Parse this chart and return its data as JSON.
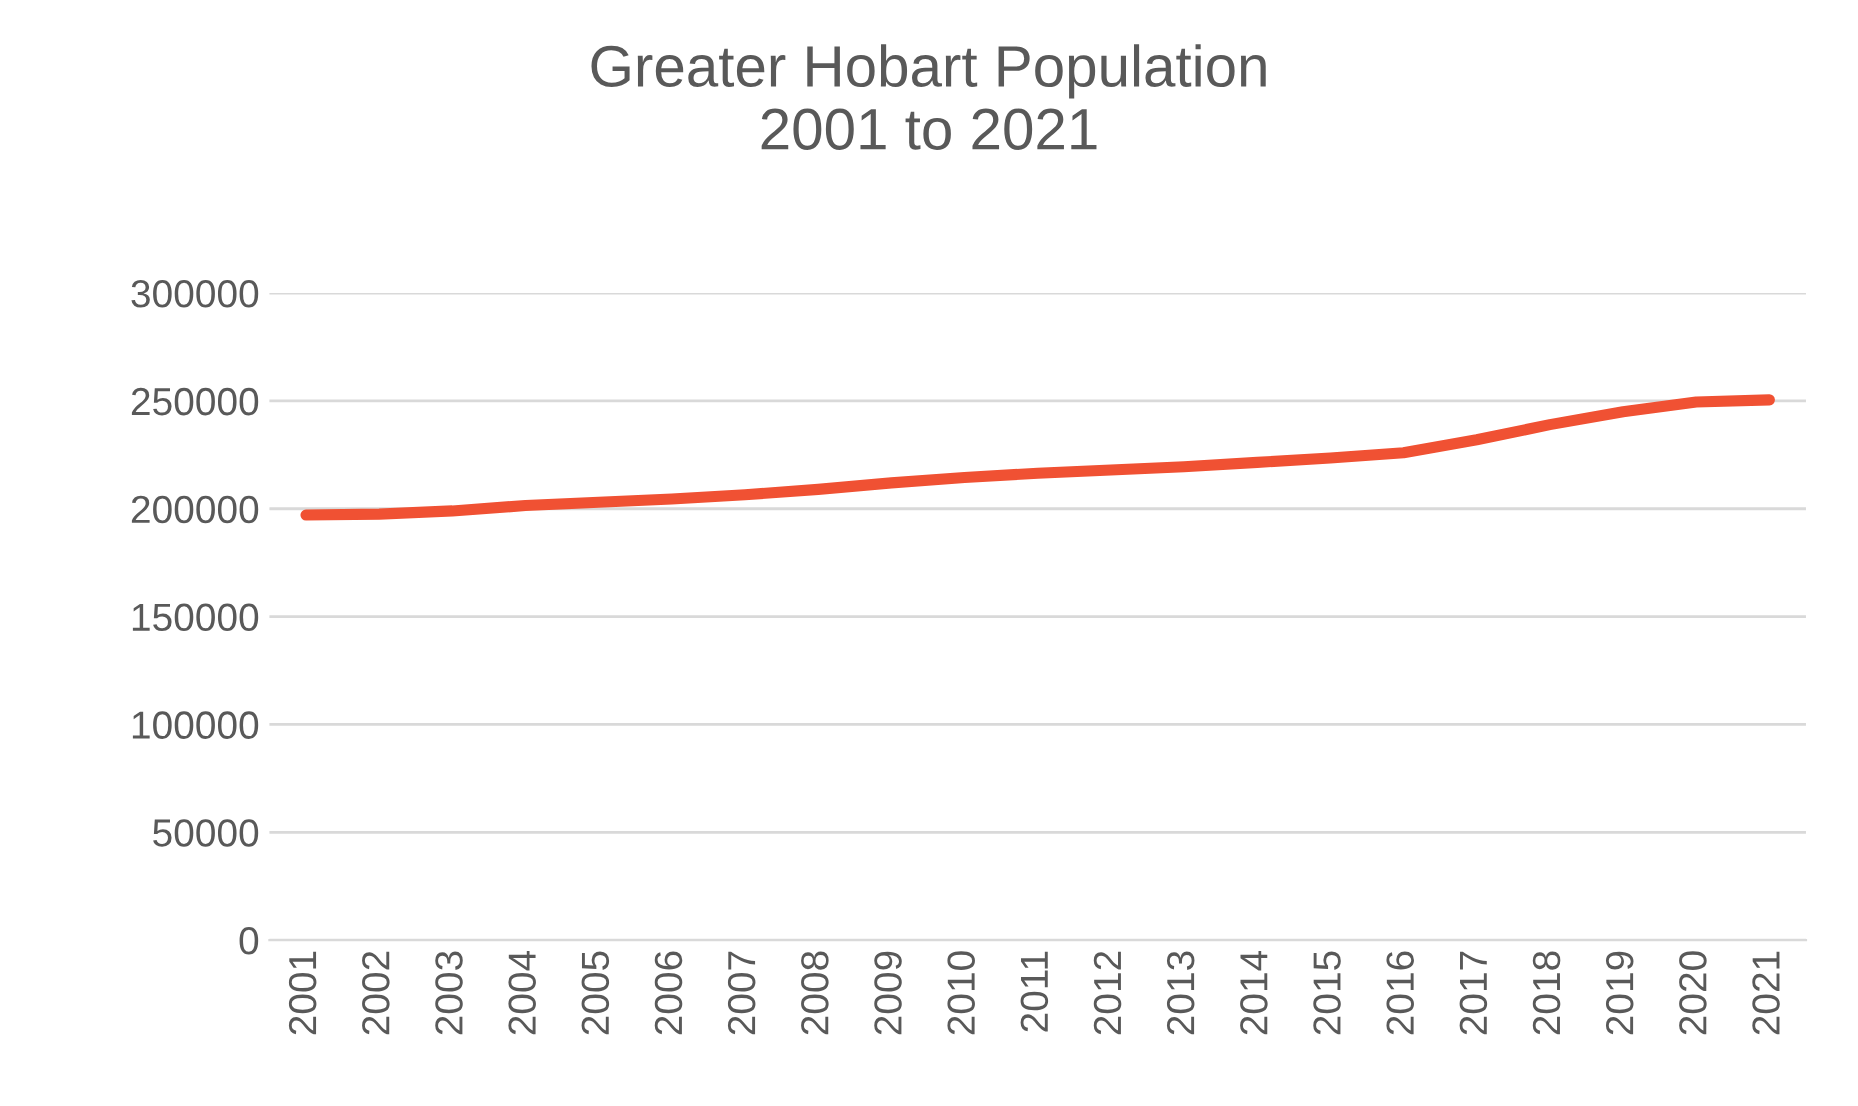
{
  "chart_data": {
    "type": "line",
    "title": "Greater Hobart Population\n2001 to 2021",
    "categories": [
      "2001",
      "2002",
      "2003",
      "2004",
      "2005",
      "2006",
      "2007",
      "2008",
      "2009",
      "2010",
      "2011",
      "2012",
      "2013",
      "2014",
      "2015",
      "2016",
      "2017",
      "2018",
      "2019",
      "2020",
      "2021"
    ],
    "series": [
      {
        "color": "#f05133",
        "values": [
          197100,
          197500,
          199000,
          201500,
          203000,
          204500,
          206500,
          209000,
          212000,
          214500,
          216500,
          218000,
          219500,
          221500,
          223500,
          226000,
          232000,
          239000,
          245000,
          249500,
          250500
        ]
      }
    ],
    "ylim": [
      0,
      300000
    ],
    "yticks": [
      0,
      50000,
      100000,
      150000,
      200000,
      250000,
      300000
    ],
    "grid": "y",
    "legend": false,
    "marker": "none",
    "line_style": "solid"
  }
}
